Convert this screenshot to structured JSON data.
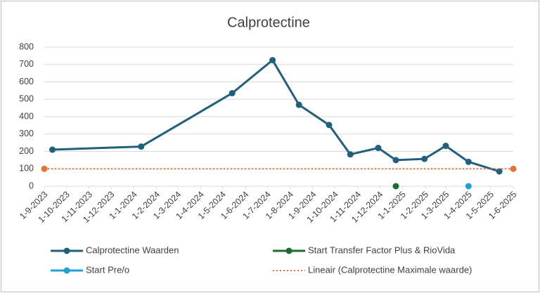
{
  "chart_data": {
    "type": "line",
    "title": "Calprotectine",
    "xlim": [
      "2023-09-01",
      "2025-06-01"
    ],
    "xticks": [
      {
        "value": "2023-09-01",
        "label": "1-9-2023"
      },
      {
        "value": "2023-10-01",
        "label": "1-10-2023"
      },
      {
        "value": "2023-11-01",
        "label": "1-11-2023"
      },
      {
        "value": "2023-12-01",
        "label": "1-12-2023"
      },
      {
        "value": "2024-01-01",
        "label": "1-1-2024"
      },
      {
        "value": "2024-02-01",
        "label": "1-2-2024"
      },
      {
        "value": "2024-03-01",
        "label": "1-3-2024"
      },
      {
        "value": "2024-04-01",
        "label": "1-4-2024"
      },
      {
        "value": "2024-05-01",
        "label": "1-5-2024"
      },
      {
        "value": "2024-06-01",
        "label": "1-6-2024"
      },
      {
        "value": "2024-07-01",
        "label": "1-7-2024"
      },
      {
        "value": "2024-08-01",
        "label": "1-8-2024"
      },
      {
        "value": "2024-09-01",
        "label": "1-9-2024"
      },
      {
        "value": "2024-10-01",
        "label": "1-10-2024"
      },
      {
        "value": "2024-11-01",
        "label": "1-11-2024"
      },
      {
        "value": "2024-12-01",
        "label": "1-12-2024"
      },
      {
        "value": "2025-01-01",
        "label": "1-1-2025"
      },
      {
        "value": "2025-02-01",
        "label": "1-2-2025"
      },
      {
        "value": "2025-03-01",
        "label": "1-3-2025"
      },
      {
        "value": "2025-04-01",
        "label": "1-4-2025"
      },
      {
        "value": "2025-05-01",
        "label": "1-5-2025"
      },
      {
        "value": "2025-06-01",
        "label": "1-6-2025"
      }
    ],
    "ylim": [
      0,
      800
    ],
    "yticks": [
      0,
      100,
      200,
      300,
      400,
      500,
      600,
      700,
      800
    ],
    "grid": true,
    "legend": "bottom",
    "series": [
      {
        "name": "Calprotectine Waarden",
        "color": "#215f7e",
        "style": "solid",
        "x": [
          "2023-09-12",
          "2024-01-11",
          "2024-05-14",
          "2024-07-08",
          "2024-08-13",
          "2024-09-23",
          "2024-10-22",
          "2024-11-29",
          "2024-12-23",
          "2025-01-31",
          "2025-03-01",
          "2025-04-01",
          "2025-05-13"
        ],
        "values": [
          210,
          228,
          535,
          725,
          468,
          352,
          183,
          220,
          150,
          157,
          232,
          140,
          85
        ]
      },
      {
        "name": "Start Transfer Factor Plus & RioVida",
        "color": "#1e6b2e",
        "style": "solid",
        "x": [
          "2024-12-23"
        ],
        "values": [
          0
        ]
      },
      {
        "name": "Start Pre/o",
        "color": "#1fa0d6",
        "style": "solid",
        "x": [
          "2025-04-01"
        ],
        "values": [
          0
        ]
      },
      {
        "name": "Lineair (Calprotectine Maximale waarde)",
        "color": "#e97132",
        "style": "dotted",
        "x": [
          "2023-09-01",
          "2025-06-01"
        ],
        "values": [
          100,
          100
        ]
      }
    ]
  }
}
